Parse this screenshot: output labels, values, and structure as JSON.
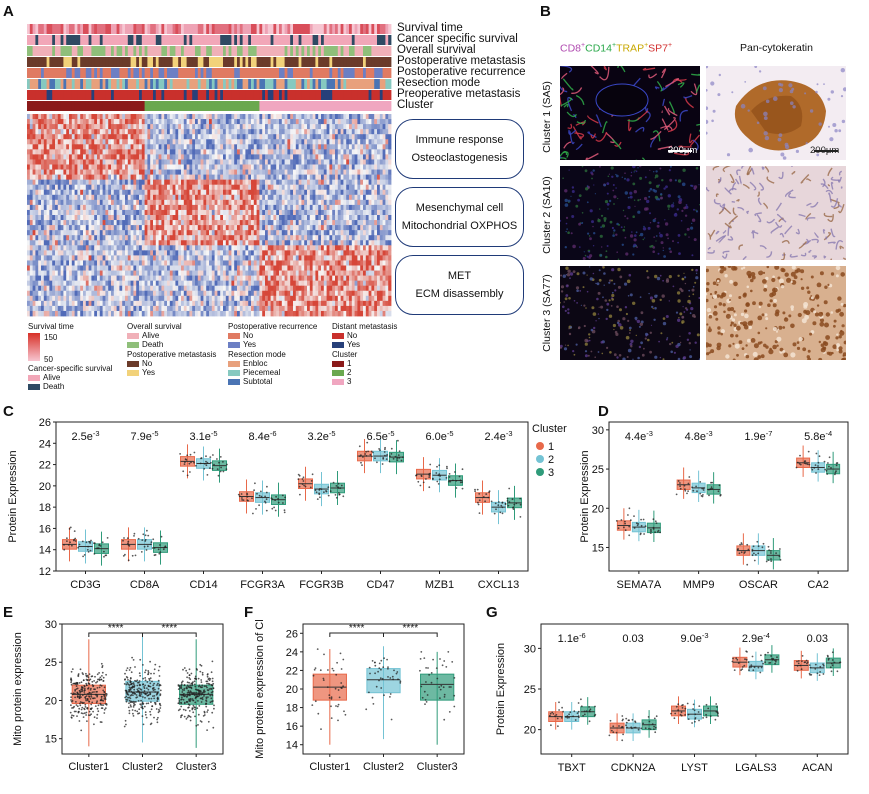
{
  "panels": {
    "a": "A",
    "b": "B",
    "c": "C",
    "d": "D",
    "e": "E",
    "f": "F",
    "g": "G"
  },
  "panel_a": {
    "track_labels": [
      "Survival time",
      "Cancer specific survival",
      "Overall survival",
      "Postoperative metastasis",
      "Postoperative recurrence",
      "Resection mode",
      "Preoperative metastasis",
      "Cluster"
    ],
    "pathways": [
      {
        "line1": "Immune response",
        "line2": "Osteoclastogenesis"
      },
      {
        "line1": "Mesenchymal cell",
        "line2": "Mitochondrial OXPHOS"
      },
      {
        "line1": "MET",
        "line2": "ECM disassembly"
      }
    ],
    "legend": {
      "survival_time": {
        "title": "Survival time",
        "max": "150",
        "min": "50"
      },
      "css": {
        "title": "Cancer-specific survival",
        "items": [
          "Alive",
          "Death"
        ]
      },
      "os": {
        "title": "Overall survival",
        "items": [
          "Alive",
          "Death"
        ]
      },
      "pm": {
        "title": "Postoperative metastasis",
        "items": [
          "No",
          "Yes"
        ]
      },
      "pr": {
        "title": "Postoperative recurrence",
        "items": [
          "No",
          "Yes"
        ]
      },
      "rm": {
        "title": "Resection mode",
        "items": [
          "Enbloc",
          "Piecemeal",
          "Subtotal"
        ]
      },
      "dm": {
        "title": "Distant metastasis",
        "items": [
          "No",
          "Yes"
        ]
      },
      "cl": {
        "title": "Cluster",
        "items": [
          "1",
          "2",
          "3"
        ]
      }
    }
  },
  "panel_b": {
    "col1_title": {
      "cd8": "CD8",
      "cd14": "CD14",
      "trap": "TRAP",
      "sp7": "SP7",
      "sup": "+"
    },
    "col2_title": "Pan-cytokeratin",
    "rows": [
      "Cluster 1 (SA5)",
      "Cluster 2 (SA10)",
      "Cluster 3 (SA77)"
    ],
    "scale_bar": "200μm"
  },
  "colors": {
    "cluster1": "#e8694a",
    "cluster2": "#74c3d4",
    "cluster3": "#2f9b7a"
  },
  "chart_data": [
    {
      "id": "C",
      "type": "box",
      "ylabel": "Protein Expression",
      "ylim": [
        12,
        26
      ],
      "yticks": [
        12,
        14,
        16,
        18,
        20,
        22,
        24,
        26
      ],
      "legend_title": "Cluster",
      "legend_items": [
        "1",
        "2",
        "3"
      ],
      "categories": [
        "CD3G",
        "CD8A",
        "CD14",
        "FCGR3A",
        "FCGR3B",
        "CD47",
        "MZB1",
        "CXCL13"
      ],
      "pvalues": [
        {
          "b": "2.5",
          "e": "-3"
        },
        {
          "b": "7.9",
          "e": "-5"
        },
        {
          "b": "3.1",
          "e": "-5"
        },
        {
          "b": "8.4",
          "e": "-6"
        },
        {
          "b": "3.2",
          "e": "-5"
        },
        {
          "b": "6.5",
          "e": "-5"
        },
        {
          "b": "6.0",
          "e": "-5"
        },
        {
          "b": "2.4",
          "e": "-3"
        }
      ],
      "medians": [
        [
          14.5,
          14.3,
          14.1
        ],
        [
          14.5,
          14.5,
          14.2
        ],
        [
          22.3,
          22.1,
          21.9
        ],
        [
          19.0,
          18.9,
          18.7
        ],
        [
          20.2,
          19.7,
          19.8
        ],
        [
          22.8,
          22.8,
          22.7
        ],
        [
          21.1,
          21.0,
          20.5
        ],
        [
          18.9,
          18.0,
          18.4
        ]
      ]
    },
    {
      "id": "D",
      "type": "box",
      "ylabel": "Protein Expression",
      "ylim": [
        12,
        31
      ],
      "yticks": [
        15,
        20,
        25,
        30
      ],
      "categories": [
        "SEMA7A",
        "MMP9",
        "OSCAR",
        "CA2"
      ],
      "pvalues": [
        {
          "b": "4.4",
          "e": "-3"
        },
        {
          "b": "4.8",
          "e": "-3"
        },
        {
          "b": "1.9",
          "e": "-7"
        },
        {
          "b": "5.8",
          "e": "-4"
        }
      ],
      "medians": [
        [
          17.8,
          17.6,
          17.5
        ],
        [
          23.0,
          22.6,
          22.4
        ],
        [
          14.6,
          14.6,
          14.0
        ],
        [
          25.8,
          25.2,
          25.0
        ]
      ]
    },
    {
      "id": "E",
      "type": "box",
      "ylabel": "Mito protein expression",
      "ylim": [
        13,
        30
      ],
      "yticks": [
        15,
        20,
        25,
        30
      ],
      "categories": [
        "Cluster1",
        "Cluster2",
        "Cluster3"
      ],
      "significance": [
        "****",
        "****"
      ],
      "medians": [
        20.8,
        21.1,
        20.8
      ],
      "q1": [
        19.6,
        19.9,
        19.5
      ],
      "q3": [
        22.0,
        22.5,
        22.0
      ],
      "min": [
        14.0,
        14.5,
        13.8
      ],
      "max": [
        28.0,
        28.5,
        28.0
      ]
    },
    {
      "id": "F",
      "type": "box",
      "ylabel": "Mito protein expression of Cl",
      "ylim": [
        13,
        27
      ],
      "yticks": [
        14,
        16,
        18,
        20,
        22,
        24,
        26
      ],
      "categories": [
        "Cluster1",
        "Cluster2",
        "Cluster3"
      ],
      "significance": [
        "****",
        "****"
      ],
      "medians": [
        20.2,
        21.0,
        20.5
      ],
      "q1": [
        18.8,
        19.6,
        18.8
      ],
      "q3": [
        21.6,
        22.2,
        21.6
      ],
      "min": [
        14.0,
        14.6,
        14.0
      ],
      "max": [
        24.3,
        24.6,
        24.0
      ]
    },
    {
      "id": "G",
      "type": "box",
      "ylabel": "Protein Expression",
      "ylim": [
        17,
        33
      ],
      "yticks": [
        20,
        25,
        30
      ],
      "categories": [
        "TBXT",
        "CDKN2A",
        "LYST",
        "LGALS3",
        "ACAN"
      ],
      "pvalues": [
        {
          "b": "1.1",
          "e": "-6"
        },
        {
          "b": "0.03",
          "e": ""
        },
        {
          "b": "9.0",
          "e": "-3"
        },
        {
          "b": "2.9",
          "e": "-4"
        },
        {
          "b": "0.03",
          "e": ""
        }
      ],
      "medians": [
        [
          21.6,
          21.6,
          22.2
        ],
        [
          20.2,
          20.2,
          20.6
        ],
        [
          22.3,
          21.9,
          22.3
        ],
        [
          28.3,
          27.8,
          28.6
        ],
        [
          27.9,
          27.6,
          28.2
        ]
      ]
    }
  ]
}
